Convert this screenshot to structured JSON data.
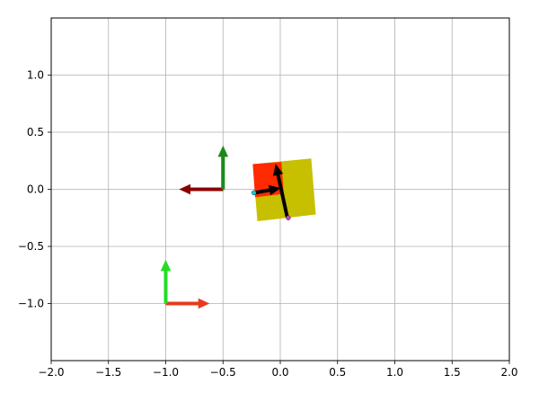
{
  "chart_data": {
    "type": "scatter",
    "xlim": [
      -2.0,
      2.0
    ],
    "ylim": [
      -1.5,
      1.5
    ],
    "grid": true,
    "x_ticks": [
      -2.0,
      -1.5,
      -1.0,
      -0.5,
      0.0,
      0.5,
      1.0,
      1.5,
      2.0
    ],
    "x_tick_labels": [
      "−2.0",
      "−1.5",
      "−1.0",
      "−0.5",
      "0.0",
      "0.5",
      "1.0",
      "1.5",
      "2.0"
    ],
    "y_ticks": [
      1.0,
      0.5,
      0.0,
      -0.5,
      -1.0
    ],
    "y_tick_labels": [
      "1.0",
      "0.5",
      "0.0",
      "−0.5",
      "−1.0"
    ],
    "arrows": [
      {
        "id": "frame-a-x",
        "x": -1.0,
        "y": -1.0,
        "dx": 0.38,
        "dy": 0.0,
        "color": "#e83a1c"
      },
      {
        "id": "frame-a-y",
        "x": -1.0,
        "y": -1.0,
        "dx": 0.0,
        "dy": 0.38,
        "color": "#22dd22"
      },
      {
        "id": "frame-b-x",
        "x": -0.5,
        "y": 0.0,
        "dx": -0.38,
        "dy": 0.0,
        "color": "#8b0000"
      },
      {
        "id": "frame-b-y",
        "x": -0.5,
        "y": 0.0,
        "dx": 0.0,
        "dy": 0.38,
        "color": "#1a8a1a"
      },
      {
        "id": "body-x",
        "x": -0.22,
        "y": -0.03,
        "dx": 0.22,
        "dy": 0.04,
        "color": "#000000"
      },
      {
        "id": "body-y",
        "x": 0.06,
        "y": -0.24,
        "dx": -0.1,
        "dy": 0.46,
        "color": "#000000"
      }
    ],
    "polygons": [
      {
        "id": "yellow-box",
        "color": "#c7c000",
        "points": [
          [
            -0.24,
            0.22
          ],
          [
            0.27,
            0.27
          ],
          [
            0.31,
            -0.22
          ],
          [
            -0.2,
            -0.28
          ]
        ]
      },
      {
        "id": "red-corner",
        "color": "#ff2a00",
        "points": [
          [
            -0.24,
            0.22
          ],
          [
            0.01,
            0.24
          ],
          [
            0.03,
            -0.04
          ],
          [
            -0.22,
            -0.07
          ]
        ]
      }
    ],
    "points": [
      {
        "id": "cyan-point",
        "x": -0.23,
        "y": -0.03,
        "color": "#00cfe0"
      },
      {
        "id": "magenta-point",
        "x": 0.07,
        "y": -0.25,
        "color": "#d040c0"
      }
    ]
  }
}
